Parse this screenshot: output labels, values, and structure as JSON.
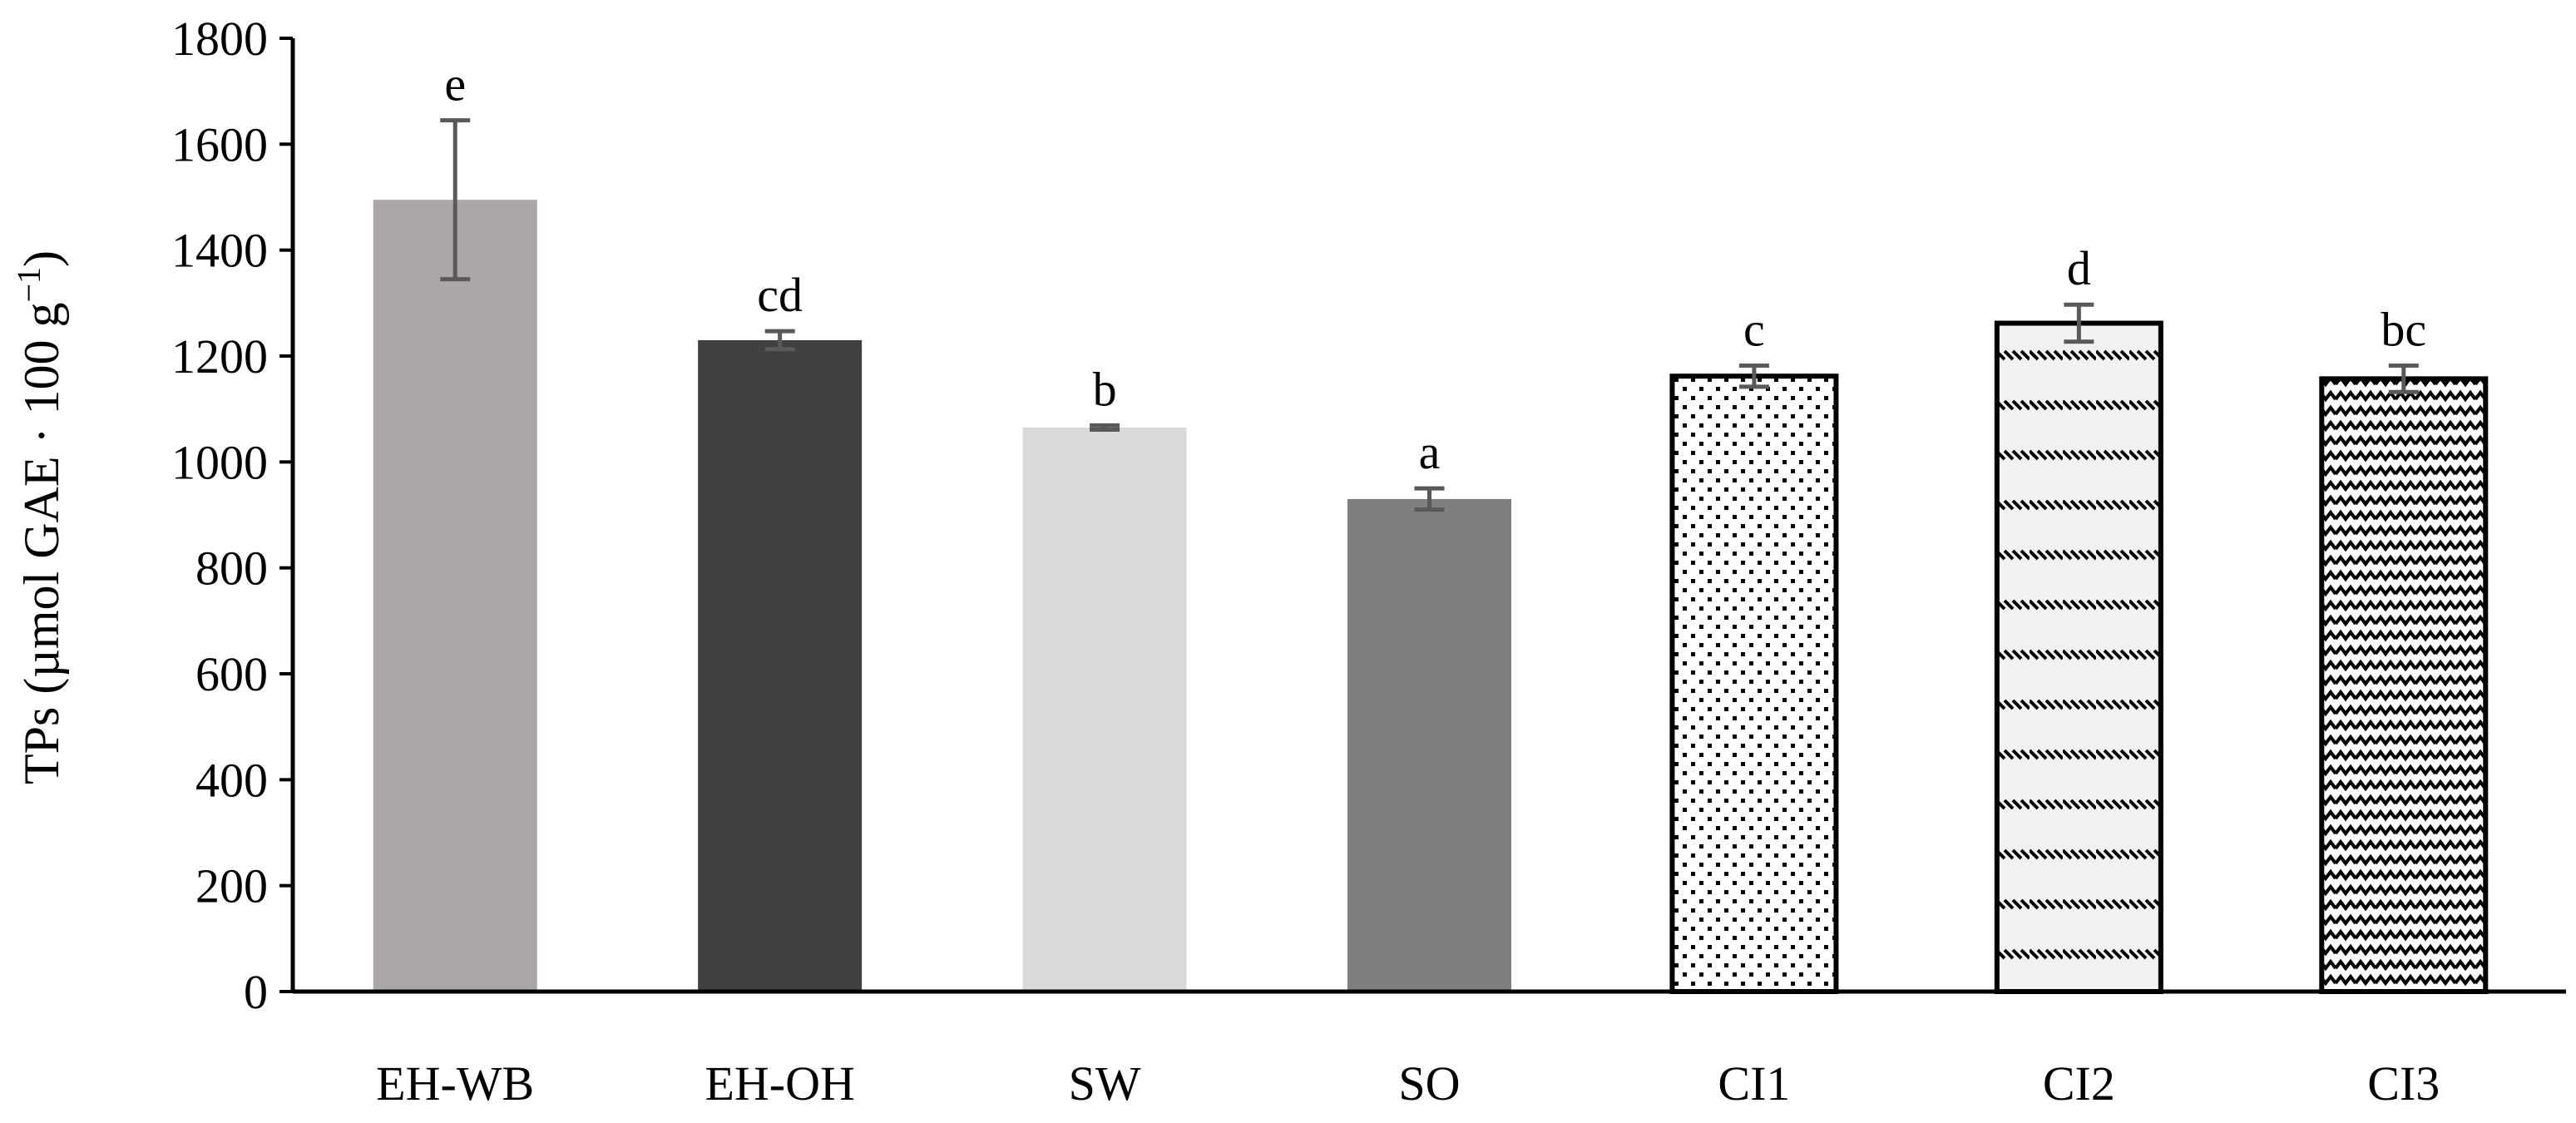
{
  "chart_data": {
    "type": "bar",
    "title": "",
    "xlabel": "",
    "ylabel": "TPs (µmol GAE · 100 g",
    "ylabel_sup": "−1",
    "ylabel_close": ")",
    "ylim": [
      0,
      1800
    ],
    "yticks": [
      0,
      200,
      400,
      600,
      800,
      1000,
      1200,
      1400,
      1600,
      1800
    ],
    "ytick_labels": [
      "0",
      "200",
      "400",
      "600",
      "800",
      "1000",
      "1200",
      "1400",
      "1600",
      "1800"
    ],
    "grid": false,
    "legend": "none",
    "categories": [
      "EH-WB",
      "EH-OH",
      "SW",
      "SO",
      "CI1",
      "CI2",
      "CI3"
    ],
    "values": [
      1495,
      1230,
      1065,
      930,
      1162,
      1262,
      1157
    ],
    "errors": [
      150,
      17,
      4,
      20,
      20,
      35,
      25
    ],
    "significance": [
      "e",
      "cd",
      "b",
      "a",
      "c",
      "d",
      "bc"
    ],
    "bar_styles": [
      {
        "fill": "#aba7a6",
        "pattern": "none"
      },
      {
        "fill": "#404040",
        "pattern": "none"
      },
      {
        "fill": "#d9d9d9",
        "pattern": "none"
      },
      {
        "fill": "#7f7f7f",
        "pattern": "none"
      },
      {
        "fill": "#ffffff",
        "pattern": "dots"
      },
      {
        "fill": "#f2f2f2",
        "pattern": "dashes"
      },
      {
        "fill": "#ffffff",
        "pattern": "zigzag"
      }
    ],
    "error_bar_color": "#595959"
  }
}
